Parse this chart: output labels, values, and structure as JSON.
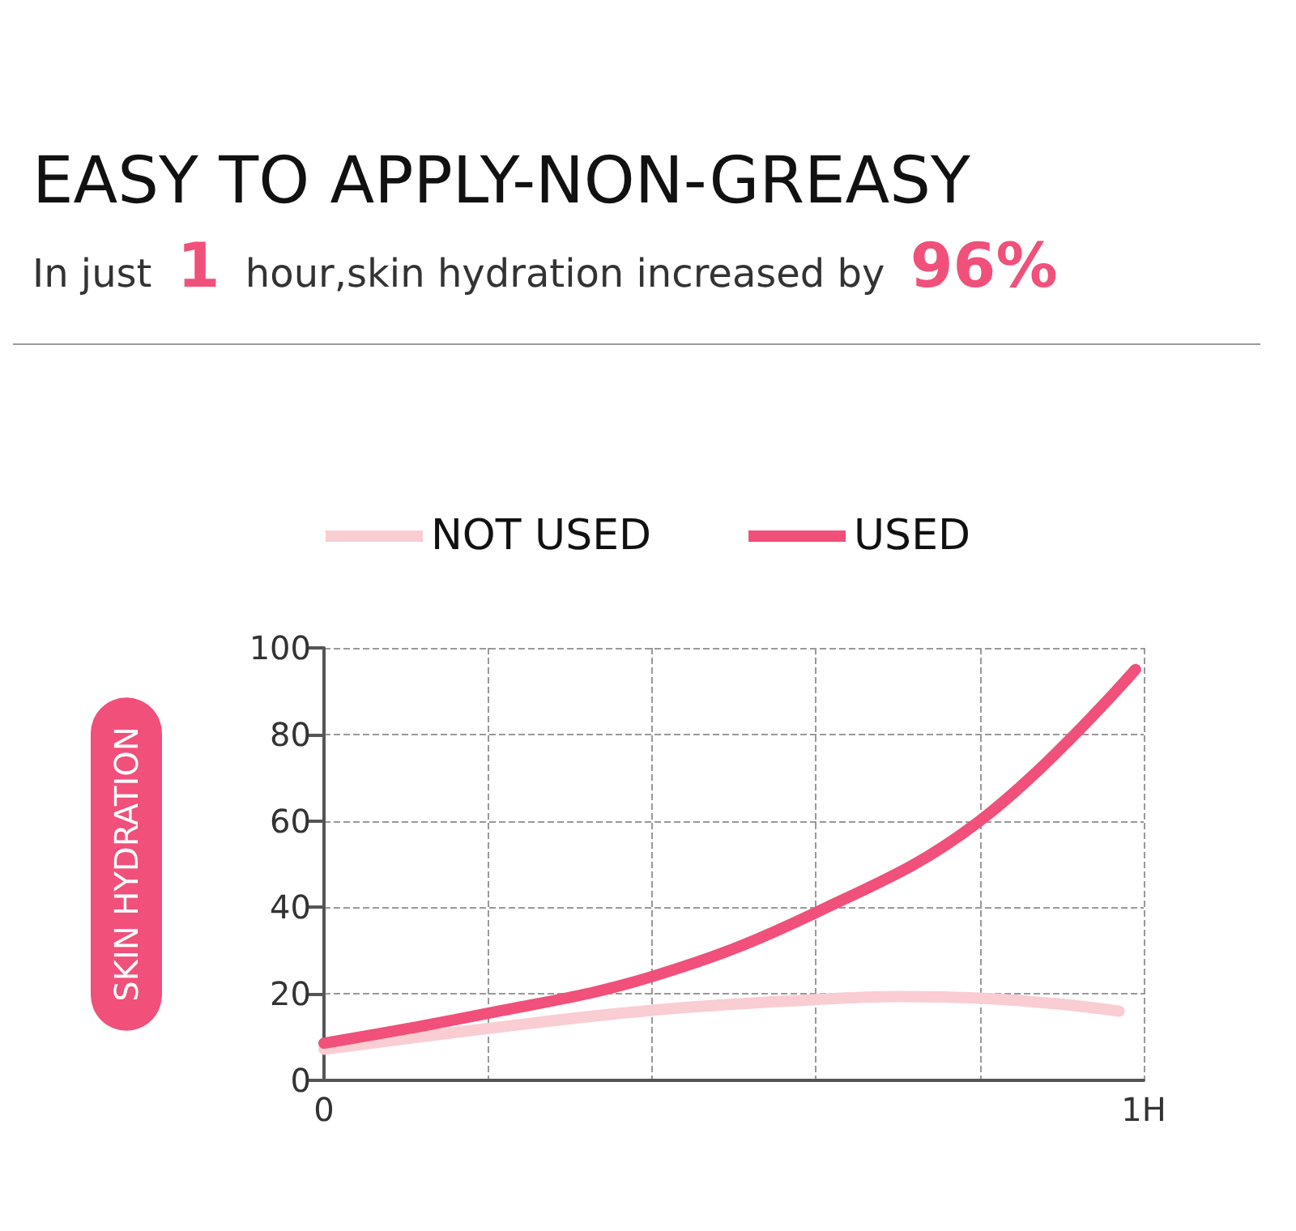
{
  "chart_data": {
    "type": "line",
    "title": "EASY TO APPLY-NON-GREASY",
    "subtitle": "In just 1 hour,skin hydration increased by 96%",
    "ylabel": "SKIN HYDRATION",
    "xlim": [
      0,
      1
    ],
    "xticks": [
      0,
      {
        "value": 0.2,
        "label": null
      },
      {
        "value": 0.4,
        "label": null
      },
      {
        "value": 0.6,
        "label": null
      },
      {
        "value": 0.8,
        "label": null
      },
      {
        "value": 1,
        "label": "1H"
      }
    ],
    "ylim": [
      0,
      100
    ],
    "yticks": [
      0,
      20,
      40,
      60,
      80,
      100
    ],
    "grid": true,
    "legend": "top",
    "marker": "none",
    "line_style": "solid",
    "series": [
      {
        "name": "NOT USED",
        "color": "#f9cdd2",
        "x": [
          0,
          0.2,
          0.4,
          0.6,
          0.7,
          0.8,
          0.9,
          0.97
        ],
        "values": [
          7.2,
          12,
          16.2,
          18.7,
          19.4,
          19,
          17.6,
          16
        ]
      },
      {
        "name": "USED",
        "color": "#f0507a",
        "x": [
          0,
          0.2,
          0.4,
          0.6,
          0.8,
          0.99
        ],
        "values": [
          8.6,
          15.5,
          24,
          38.8,
          60,
          95
        ]
      }
    ]
  }
}
